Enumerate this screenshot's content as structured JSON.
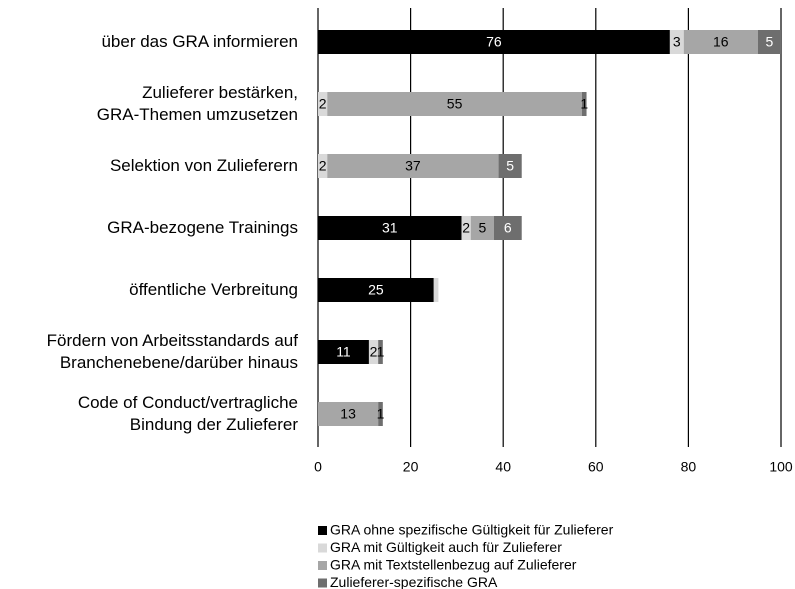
{
  "chart_data": {
    "type": "stacked-barh",
    "categories": [
      "über das GRA informieren",
      "Zulieferer bestärken,\nGRA-Themen umzusetzen",
      "Selektion von Zulieferern",
      "GRA-bezogene Trainings",
      "öffentliche Verbreitung",
      "Fördern von Arbeitsstandards auf\nBranchenebene/darüber hinaus",
      "Code of Conduct/vertragliche\nBindung der Zulieferer"
    ],
    "series": [
      {
        "name": "GRA ohne spezifische Gültigkeit für Zulieferer",
        "color": "#000000",
        "label_color": "#ffffff",
        "values": [
          76,
          null,
          null,
          31,
          25,
          11,
          null
        ]
      },
      {
        "name": "GRA mit Gültigkeit auch für Zulieferer",
        "color": "#d9d9d9",
        "label_color": "#000000",
        "values": [
          3,
          2,
          2,
          2,
          1,
          2,
          null
        ],
        "value_labels": [
          "3",
          "2",
          "2",
          "2",
          null,
          "2",
          null
        ]
      },
      {
        "name": "GRA mit Textstellenbezug auf Zulieferer",
        "color": "#a6a6a6",
        "label_color": "#000000",
        "values": [
          16,
          55,
          37,
          5,
          null,
          null,
          13
        ]
      },
      {
        "name": "Zulieferer-spezifische GRA",
        "color": "#6e6e6e",
        "label_color": "#ffffff",
        "values": [
          5,
          1,
          5,
          6,
          null,
          1,
          1
        ]
      }
    ],
    "xlim": [
      0,
      100
    ],
    "xticks": [
      0,
      20,
      40,
      60,
      80,
      100
    ],
    "grid": true,
    "legend": "bottom"
  }
}
